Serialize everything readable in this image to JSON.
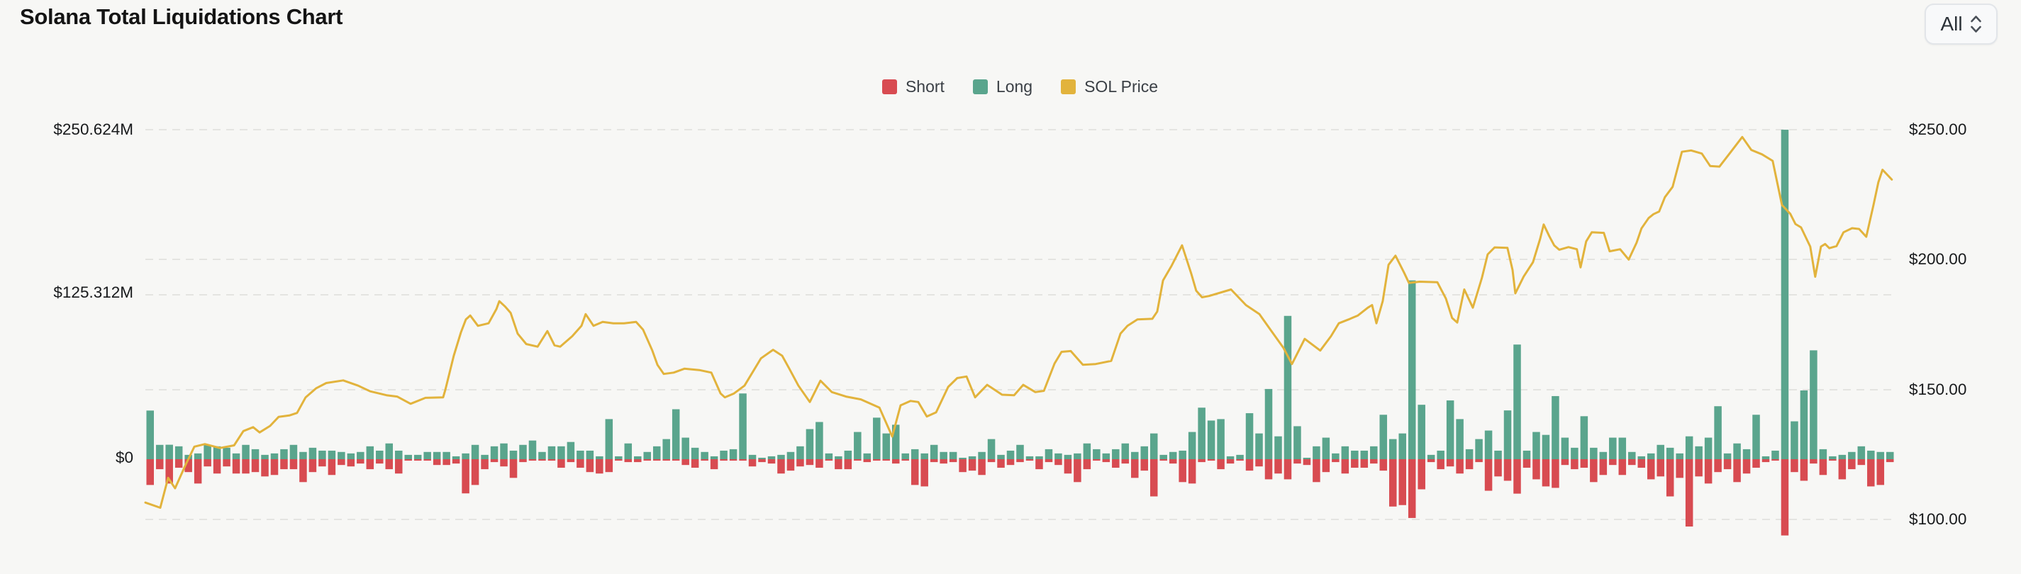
{
  "controls": {
    "time_range_selector": {
      "value": "All",
      "icon": "up-down-chevron"
    }
  },
  "chart_data": {
    "type": "bar-line-combo",
    "title": "Solana Total Liquidations Chart",
    "grid": "dashed-horizontal",
    "legend_position": "top-center",
    "x_axis_labels_visible": false,
    "background_color": "#f7f7f5",
    "gridline_color": "#e4e4e1",
    "legend": [
      {
        "label": "Short",
        "series_type": "bar",
        "color": "#d84b51"
      },
      {
        "label": "Long",
        "series_type": "bar",
        "color": "#5aa58d"
      },
      {
        "label": "SOL Price",
        "series_type": "line",
        "color": "#e2b33c"
      }
    ],
    "left_axis": {
      "unit": "USD liquidation volume (millions)",
      "min": 0,
      "max": 250.624,
      "ticks": [
        {
          "label": "$250.624M",
          "value": 250.624
        },
        {
          "label": "$125.312M",
          "value": 125.312
        },
        {
          "label": "$0",
          "value": 0
        }
      ]
    },
    "right_axis": {
      "unit": "SOL price (USD)",
      "min": 100,
      "max": 250,
      "ticks": [
        {
          "label": "$250.00",
          "value": 250
        },
        {
          "label": "$200.00",
          "value": 200
        },
        {
          "label": "$150.00",
          "value": 150
        },
        {
          "label": "$100.00",
          "value": 100
        }
      ]
    },
    "bars_unit": "$M",
    "bars_long_short": [
      [
        37,
        19.6
      ],
      [
        10.9,
        7.6
      ],
      [
        11,
        18.5
      ],
      [
        9.8,
        6.5
      ],
      [
        3.3,
        9.8
      ],
      [
        4.4,
        18.5
      ],
      [
        10.9,
        5.5
      ],
      [
        9.8,
        10.9
      ],
      [
        8.7,
        5.5
      ],
      [
        4.4,
        10.9
      ],
      [
        10.9,
        10.9
      ],
      [
        7.6,
        9.8
      ],
      [
        3.3,
        13.1
      ],
      [
        4.4,
        12
      ],
      [
        7.6,
        7.6
      ],
      [
        10.9,
        7.6
      ],
      [
        5.5,
        17.4
      ],
      [
        8.7,
        9.8
      ],
      [
        6.5,
        5.5
      ],
      [
        6.5,
        12
      ],
      [
        5.5,
        4.4
      ],
      [
        4.4,
        5.5
      ],
      [
        5.5,
        3.3
      ],
      [
        9.8,
        7.6
      ],
      [
        6.5,
        3.3
      ],
      [
        12,
        7.6
      ],
      [
        6.5,
        10.9
      ],
      [
        3.3,
        1.1
      ],
      [
        3.3,
        1.1
      ],
      [
        5.5,
        1.1
      ],
      [
        5.5,
        4.4
      ],
      [
        5.5,
        4.4
      ],
      [
        2.2,
        3.3
      ],
      [
        4.4,
        26
      ],
      [
        10.9,
        19.6
      ],
      [
        3.3,
        7.6
      ],
      [
        9.8,
        2.2
      ],
      [
        12,
        5.5
      ],
      [
        6.5,
        14.2
      ],
      [
        10.9,
        2.2
      ],
      [
        14.2,
        1.1
      ],
      [
        5.5,
        1.1
      ],
      [
        9.8,
        1.1
      ],
      [
        9.8,
        6.5
      ],
      [
        13.1,
        2.2
      ],
      [
        6.5,
        6.5
      ],
      [
        6.5,
        9.8
      ],
      [
        2.2,
        10.9
      ],
      [
        30.5,
        9.8
      ],
      [
        2.2,
        1.1
      ],
      [
        12,
        2.2
      ],
      [
        2.2,
        2.2
      ],
      [
        5.5,
        1.1
      ],
      [
        9.8,
        1.1
      ],
      [
        15.3,
        1.1
      ],
      [
        38,
        1.1
      ],
      [
        16.4,
        4.4
      ],
      [
        8.7,
        6.5
      ],
      [
        5.5,
        1.1
      ],
      [
        2.2,
        7.6
      ],
      [
        6.5,
        1.1
      ],
      [
        7.6,
        1.1
      ],
      [
        50,
        1.1
      ],
      [
        3.3,
        5.5
      ],
      [
        1.1,
        2.2
      ],
      [
        2.2,
        3.3
      ],
      [
        3.3,
        10.9
      ],
      [
        5.5,
        8.7
      ],
      [
        9.8,
        5.5
      ],
      [
        22.9,
        4.4
      ],
      [
        28.3,
        6.5
      ],
      [
        4.4,
        1.1
      ],
      [
        2.2,
        7.6
      ],
      [
        6.5,
        7.6
      ],
      [
        20.7,
        1.1
      ],
      [
        4.4,
        2.2
      ],
      [
        31.6,
        1.1
      ],
      [
        19.6,
        1.1
      ],
      [
        26.2,
        3.3
      ],
      [
        4.4,
        1.1
      ],
      [
        7.6,
        19.6
      ],
      [
        4.4,
        20.7
      ],
      [
        10.9,
        2.2
      ],
      [
        5.5,
        3.3
      ],
      [
        5.5,
        2.2
      ],
      [
        1.1,
        9.8
      ],
      [
        2.2,
        8.7
      ],
      [
        5.5,
        12
      ],
      [
        15.3,
        2.2
      ],
      [
        3.3,
        6.5
      ],
      [
        6.5,
        4.4
      ],
      [
        10.9,
        2.2
      ],
      [
        2.2,
        1.1
      ],
      [
        2.2,
        7.6
      ],
      [
        7.6,
        2.2
      ],
      [
        4.4,
        4.4
      ],
      [
        3.3,
        10.9
      ],
      [
        4.4,
        17.4
      ],
      [
        12,
        7.6
      ],
      [
        7.6,
        1.1
      ],
      [
        4.4,
        2.2
      ],
      [
        7.6,
        6.5
      ],
      [
        12,
        3.3
      ],
      [
        5.5,
        14.2
      ],
      [
        9.8,
        8.7
      ],
      [
        19.6,
        28.3
      ],
      [
        3.3,
        1.1
      ],
      [
        5.5,
        3.3
      ],
      [
        6.5,
        17.4
      ],
      [
        20.7,
        18.5
      ],
      [
        39.2,
        2.2
      ],
      [
        29.4,
        1.1
      ],
      [
        30.5,
        7.6
      ],
      [
        2.2,
        3.3
      ],
      [
        3.3,
        1.1
      ],
      [
        35,
        8.7
      ],
      [
        19.6,
        5.5
      ],
      [
        53.4,
        15.3
      ],
      [
        17.4,
        10.9
      ],
      [
        109,
        15.3
      ],
      [
        25.1,
        3.3
      ],
      [
        1.1,
        4.4
      ],
      [
        9.8,
        17.4
      ],
      [
        16.4,
        9.8
      ],
      [
        4.4,
        2.2
      ],
      [
        9.8,
        10.9
      ],
      [
        6.5,
        6.5
      ],
      [
        6.5,
        6.5
      ],
      [
        9.8,
        3.3
      ],
      [
        33.8,
        8.7
      ],
      [
        15.3,
        36
      ],
      [
        19.6,
        34.9
      ],
      [
        136,
        44.7
      ],
      [
        41.4,
        22.9
      ],
      [
        3.3,
        2.2
      ],
      [
        6.5,
        7.6
      ],
      [
        44.7,
        5.5
      ],
      [
        30.5,
        10.9
      ],
      [
        7.6,
        7.6
      ],
      [
        15.3,
        2.2
      ],
      [
        21.8,
        24
      ],
      [
        6.5,
        13.1
      ],
      [
        37.1,
        16.4
      ],
      [
        87.2,
        26.2
      ],
      [
        6.5,
        6.5
      ],
      [
        20.7,
        15.3
      ],
      [
        18.5,
        20.7
      ],
      [
        48,
        21.8
      ],
      [
        16.4,
        4.4
      ],
      [
        8.7,
        7.6
      ],
      [
        32.7,
        6.5
      ],
      [
        8.7,
        17.4
      ],
      [
        5.5,
        12
      ],
      [
        16.4,
        4.4
      ],
      [
        16.4,
        12
      ],
      [
        5.5,
        4.4
      ],
      [
        2.2,
        6.5
      ],
      [
        4.4,
        15.3
      ],
      [
        10.9,
        13.1
      ],
      [
        8.7,
        28.3
      ],
      [
        4.4,
        14.2
      ],
      [
        17.4,
        51.2
      ],
      [
        9.8,
        13.1
      ],
      [
        16.4,
        18.5
      ],
      [
        40.3,
        9.8
      ],
      [
        4.4,
        7.6
      ],
      [
        12,
        17.4
      ],
      [
        7.6,
        10.9
      ],
      [
        33.8,
        6.5
      ],
      [
        2.2,
        2.2
      ],
      [
        6.5,
        1.1
      ],
      [
        250.6,
        58
      ],
      [
        28.8,
        9.8
      ],
      [
        52.3,
        16.4
      ],
      [
        82.8,
        3.3
      ],
      [
        7.6,
        12
      ],
      [
        2.2,
        1.1
      ],
      [
        3.3,
        15.3
      ],
      [
        5.5,
        7.6
      ],
      [
        9.8,
        4.4
      ],
      [
        6.5,
        20.7
      ],
      [
        5.5,
        19.6
      ],
      [
        5.5,
        2.2
      ]
    ],
    "sol_price_points_t_usd": [
      [
        0.0,
        106.5
      ],
      [
        0.0085,
        104.5
      ],
      [
        0.013,
        116.0
      ],
      [
        0.017,
        112.0
      ],
      [
        0.023,
        121.0
      ],
      [
        0.028,
        128.0
      ],
      [
        0.034,
        129.0
      ],
      [
        0.0426,
        127.5
      ],
      [
        0.0507,
        128.5
      ],
      [
        0.056,
        134.0
      ],
      [
        0.0616,
        135.5
      ],
      [
        0.0653,
        133.5
      ],
      [
        0.0713,
        136.0
      ],
      [
        0.0762,
        139.5
      ],
      [
        0.0823,
        140.0
      ],
      [
        0.0867,
        141.0
      ],
      [
        0.0916,
        147.0
      ],
      [
        0.0977,
        150.5
      ],
      [
        0.1034,
        152.5
      ],
      [
        0.1131,
        153.5
      ],
      [
        0.1216,
        151.5
      ],
      [
        0.1285,
        149.3
      ],
      [
        0.1378,
        147.8
      ],
      [
        0.1439,
        147.3
      ],
      [
        0.1516,
        144.5
      ],
      [
        0.1601,
        146.8
      ],
      [
        0.1702,
        147.0
      ],
      [
        0.1715,
        150.0
      ],
      [
        0.1763,
        163.0
      ],
      [
        0.1804,
        172.0
      ],
      [
        0.1832,
        177.0
      ],
      [
        0.1857,
        178.5
      ],
      [
        0.1901,
        174.5
      ],
      [
        0.1962,
        175.5
      ],
      [
        0.2007,
        181.0
      ],
      [
        0.2023,
        184.0
      ],
      [
        0.2055,
        182.0
      ],
      [
        0.2088,
        179.5
      ],
      [
        0.2128,
        171.5
      ],
      [
        0.2177,
        167.5
      ],
      [
        0.2242,
        166.5
      ],
      [
        0.2298,
        172.5
      ],
      [
        0.2339,
        167.0
      ],
      [
        0.2371,
        166.5
      ],
      [
        0.244,
        170.5
      ],
      [
        0.2493,
        174.5
      ],
      [
        0.2517,
        179.0
      ],
      [
        0.2562,
        174.5
      ],
      [
        0.2614,
        176.0
      ],
      [
        0.2675,
        175.5
      ],
      [
        0.2736,
        175.5
      ],
      [
        0.2805,
        176.0
      ],
      [
        0.2845,
        173.0
      ],
      [
        0.2898,
        165.0
      ],
      [
        0.2927,
        159.5
      ],
      [
        0.2963,
        156.0
      ],
      [
        0.302,
        156.5
      ],
      [
        0.3081,
        158.0
      ],
      [
        0.3166,
        157.5
      ],
      [
        0.3235,
        156.5
      ],
      [
        0.3288,
        148.5
      ],
      [
        0.3312,
        147.0
      ],
      [
        0.3365,
        148.5
      ],
      [
        0.3425,
        151.5
      ],
      [
        0.3519,
        162.0
      ],
      [
        0.3588,
        165.3
      ],
      [
        0.364,
        163.0
      ],
      [
        0.3681,
        158.0
      ],
      [
        0.3733,
        151.5
      ],
      [
        0.3798,
        145.2
      ],
      [
        0.3859,
        153.4
      ],
      [
        0.3924,
        149.0
      ],
      [
        0.4005,
        147.3
      ],
      [
        0.409,
        146.2
      ],
      [
        0.4196,
        143.0
      ],
      [
        0.4269,
        131.9
      ],
      [
        0.4317,
        143.9
      ],
      [
        0.4374,
        145.6
      ],
      [
        0.4418,
        145.2
      ],
      [
        0.4467,
        139.6
      ],
      [
        0.452,
        141.2
      ],
      [
        0.4589,
        151.0
      ],
      [
        0.4641,
        154.4
      ],
      [
        0.4694,
        155.0
      ],
      [
        0.4743,
        147.0
      ],
      [
        0.4812,
        151.8
      ],
      [
        0.4897,
        148.0
      ],
      [
        0.4966,
        147.8
      ],
      [
        0.5018,
        151.8
      ],
      [
        0.5087,
        149.0
      ],
      [
        0.5136,
        149.5
      ],
      [
        0.5197,
        160.0
      ],
      [
        0.5237,
        164.5
      ],
      [
        0.529,
        164.8
      ],
      [
        0.5359,
        159.5
      ],
      [
        0.5432,
        159.8
      ],
      [
        0.5521,
        161.0
      ],
      [
        0.5574,
        171.5
      ],
      [
        0.5614,
        174.5
      ],
      [
        0.5671,
        177.0
      ],
      [
        0.5756,
        177.2
      ],
      [
        0.5784,
        180.0
      ],
      [
        0.5817,
        192.0
      ],
      [
        0.5865,
        197.5
      ],
      [
        0.5926,
        205.5
      ],
      [
        0.5979,
        194.5
      ],
      [
        0.6007,
        188.0
      ],
      [
        0.604,
        185.5
      ],
      [
        0.608,
        186.0
      ],
      [
        0.6206,
        188.5
      ],
      [
        0.6291,
        182.5
      ],
      [
        0.6368,
        179.0
      ],
      [
        0.6437,
        172.5
      ],
      [
        0.6506,
        166.0
      ],
      [
        0.6554,
        159.8
      ],
      [
        0.6627,
        169.5
      ],
      [
        0.6716,
        165.0
      ],
      [
        0.6777,
        170.5
      ],
      [
        0.6822,
        175.5
      ],
      [
        0.6879,
        177.0
      ],
      [
        0.6931,
        178.5
      ],
      [
        0.6988,
        181.5
      ],
      [
        0.7012,
        182.5
      ],
      [
        0.7037,
        175.5
      ],
      [
        0.7073,
        184.0
      ],
      [
        0.7106,
        198.0
      ],
      [
        0.7146,
        201.5
      ],
      [
        0.7195,
        195.0
      ],
      [
        0.7223,
        191.0
      ],
      [
        0.7284,
        191.5
      ],
      [
        0.7385,
        191.3
      ],
      [
        0.7434,
        185.0
      ],
      [
        0.747,
        177.5
      ],
      [
        0.7499,
        175.8
      ],
      [
        0.7539,
        188.5
      ],
      [
        0.7588,
        181.5
      ],
      [
        0.764,
        193.0
      ],
      [
        0.7673,
        202.0
      ],
      [
        0.7713,
        204.7
      ],
      [
        0.7786,
        204.5
      ],
      [
        0.7815,
        196.0
      ],
      [
        0.7831,
        187.0
      ],
      [
        0.7879,
        193.5
      ],
      [
        0.7932,
        199.0
      ],
      [
        0.7973,
        208.0
      ],
      [
        0.7993,
        213.5
      ],
      [
        0.8025,
        209.0
      ],
      [
        0.8053,
        205.5
      ],
      [
        0.8082,
        203.8
      ],
      [
        0.8135,
        204.8
      ],
      [
        0.8183,
        204.0
      ],
      [
        0.8204,
        197.0
      ],
      [
        0.8236,
        207.0
      ],
      [
        0.8268,
        210.5
      ],
      [
        0.8337,
        210.3
      ],
      [
        0.837,
        203.2
      ],
      [
        0.843,
        204.0
      ],
      [
        0.8479,
        200.0
      ],
      [
        0.8524,
        206.5
      ],
      [
        0.8552,
        212.0
      ],
      [
        0.8593,
        216.0
      ],
      [
        0.8621,
        217.5
      ],
      [
        0.8653,
        218.5
      ],
      [
        0.8686,
        224.0
      ],
      [
        0.873,
        228.0
      ],
      [
        0.8783,
        241.5
      ],
      [
        0.8836,
        242.0
      ],
      [
        0.8897,
        240.8
      ],
      [
        0.8945,
        236.0
      ],
      [
        0.8998,
        235.8
      ],
      [
        0.9067,
        241.8
      ],
      [
        0.9128,
        247.2
      ],
      [
        0.918,
        242.2
      ],
      [
        0.9241,
        240.5
      ],
      [
        0.9302,
        238.0
      ],
      [
        0.9355,
        221.0
      ],
      [
        0.9403,
        217.6
      ],
      [
        0.9432,
        213.7
      ],
      [
        0.9464,
        212.4
      ],
      [
        0.9517,
        205.0
      ],
      [
        0.9545,
        193.4
      ],
      [
        0.9578,
        205.0
      ],
      [
        0.9602,
        206.0
      ],
      [
        0.9626,
        204.4
      ],
      [
        0.9667,
        205.2
      ],
      [
        0.9707,
        210.5
      ],
      [
        0.9756,
        212.1
      ],
      [
        0.9796,
        211.8
      ],
      [
        0.9837,
        208.8
      ],
      [
        0.9878,
        220.9
      ],
      [
        0.9906,
        229.7
      ],
      [
        0.993,
        234.6
      ],
      [
        0.9983,
        230.8
      ]
    ]
  }
}
